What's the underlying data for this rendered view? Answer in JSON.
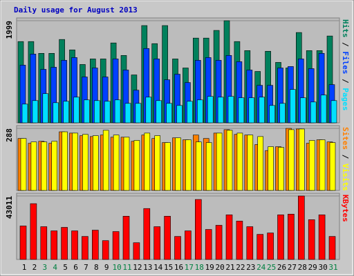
{
  "chart_data": [
    {
      "type": "bar",
      "title": "Daily usage for August 2013",
      "ylim": [
        0,
        1999
      ],
      "yticks": [
        1999
      ],
      "legend_separator": " / ",
      "series": [
        {
          "name": "Hits",
          "color": "#00805c",
          "values": [
            1591,
            1591,
            1360,
            1360,
            1632,
            1428,
            1142,
            1251,
            1251,
            1564,
            1319,
            938,
            1904,
            1550,
            1904,
            1251,
            1074,
            1659,
            1659,
            1809,
            1999,
            1591,
            1414,
            1006,
            1401,
            1183,
            1074,
            1768,
            1414,
            1414,
            1700
          ]
        },
        {
          "name": "Files",
          "color": "#0040ff",
          "values": [
            1129,
            1346,
            1047,
            1088,
            1224,
            1278,
            898,
            1074,
            898,
            1251,
            1034,
            639,
            1455,
            1251,
            843,
            952,
            789,
            1224,
            1278,
            1224,
            1319,
            1197,
            1034,
            734,
            734,
            1074,
            1102,
            1251,
            1061,
            1360,
            748
          ]
        },
        {
          "name": "Pages",
          "color": "#00e0ff",
          "values": [
            367,
            435,
            571,
            394,
            422,
            503,
            449,
            435,
            422,
            449,
            381,
            381,
            503,
            435,
            381,
            340,
            422,
            449,
            517,
            503,
            517,
            490,
            490,
            503,
            340,
            381,
            653,
            490,
            408,
            544,
            435
          ]
        }
      ]
    },
    {
      "type": "bar",
      "ylim": [
        0,
        288
      ],
      "yticks": [
        288
      ],
      "legend_separator": " / ",
      "series": [
        {
          "name": "Sites",
          "color": "#ff8000",
          "values": [
            241,
            219,
            228,
            219,
            272,
            266,
            254,
            250,
            257,
            247,
            247,
            228,
            257,
            241,
            222,
            244,
            235,
            257,
            241,
            266,
            282,
            260,
            257,
            213,
            185,
            203,
            288,
            285,
            219,
            235,
            225
          ]
        },
        {
          "name": "Visits",
          "color": "#ffff00",
          "values": [
            241,
            225,
            225,
            228,
            272,
            266,
            260,
            254,
            279,
            257,
            247,
            232,
            266,
            254,
            222,
            244,
            235,
            225,
            222,
            266,
            279,
            266,
            257,
            250,
            203,
            200,
            282,
            285,
            232,
            235,
            222
          ]
        }
      ]
    },
    {
      "type": "bar",
      "ylim": [
        0,
        43011
      ],
      "yticks": [
        43011
      ],
      "categories": [
        "1",
        "2",
        "3",
        "4",
        "5",
        "6",
        "7",
        "8",
        "9",
        "10",
        "11",
        "12",
        "13",
        "14",
        "15",
        "16",
        "17",
        "18",
        "19",
        "20",
        "21",
        "22",
        "23",
        "24",
        "25",
        "26",
        "27",
        "28",
        "29",
        "30",
        "31"
      ],
      "category_colors": [
        "#000000",
        "#000000",
        "#008040",
        "#008040",
        "#000000",
        "#000000",
        "#000000",
        "#000000",
        "#000000",
        "#008040",
        "#008040",
        "#000000",
        "#000000",
        "#000000",
        "#000000",
        "#000000",
        "#008040",
        "#008040",
        "#000000",
        "#000000",
        "#000000",
        "#000000",
        "#000000",
        "#008040",
        "#008040",
        "#000000",
        "#000000",
        "#000000",
        "#000000",
        "#000000",
        "#008040"
      ],
      "series": [
        {
          "name": "KBytes",
          "color": "#ff0000",
          "values": [
            22685,
            37808,
            22212,
            19377,
            21740,
            19377,
            15596,
            19849,
            12760,
            18904,
            29301,
            11342,
            34500,
            22212,
            29301,
            15596,
            19377,
            40644,
            20322,
            23157,
            30246,
            25993,
            22212,
            17014,
            17959,
            30246,
            30719,
            43011,
            26938,
            30246,
            15596
          ]
        }
      ]
    }
  ]
}
